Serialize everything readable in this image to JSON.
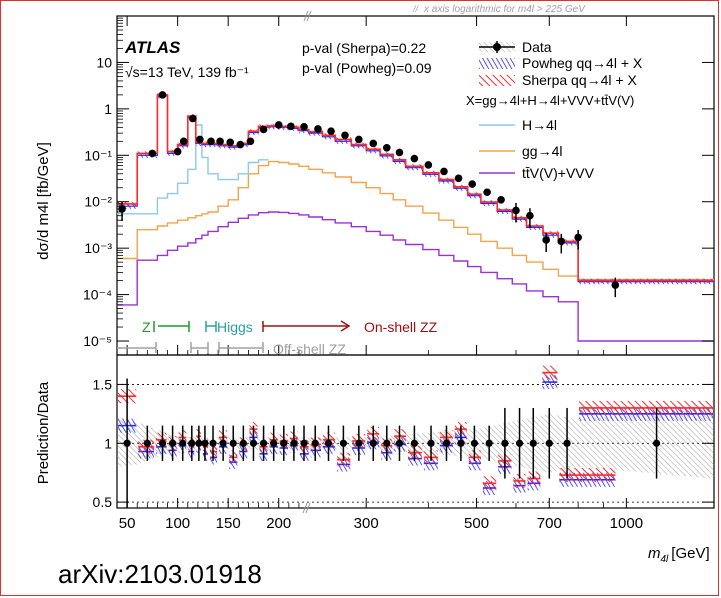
{
  "chart_data": [
    {
      "type": "line",
      "panel": "main",
      "experiment": "ATLAS",
      "energy_lumi_label": "√s=13 TeV, 139 fb⁻¹",
      "pval_sherpa": "p-val (Sherpa)=0.22",
      "pval_powheg": "p-val (Powheg)=0.09",
      "top_note": "x axis logarithmic for m4l > 225 GeV",
      "ylabel": "dσ/d m4l [fb/GeV]",
      "y_scale": "log",
      "ylim": [
        5e-06,
        100
      ],
      "y_ticks": [
        "10",
        "1",
        "10⁻¹",
        "10⁻²",
        "10⁻³",
        "10⁻⁴",
        "10⁻⁵"
      ],
      "legend": {
        "data": "Data",
        "powheg": "Powheg qq→4l + X",
        "sherpa": "Sherpa qq→4l + X",
        "x_def": "X=gg→4l+H→4l+VVV+tt̄V(V)",
        "higgs": "H→4l",
        "gg": "gg→4l",
        "ttv": "tt̄V(V)+VVV"
      },
      "region_labels": {
        "z": "Z",
        "higgs": "Higgs",
        "onshell_zz": "On-shell ZZ",
        "offshell_zz": "Off-shell ZZ"
      },
      "series": [
        {
          "name": "Data",
          "x": [
            45,
            75,
            85,
            100,
            106,
            115,
            122,
            133,
            142,
            152,
            162,
            172,
            185,
            200,
            212,
            225,
            240,
            255,
            272,
            290,
            310,
            330,
            350,
            375,
            400,
            430,
            460,
            490,
            525,
            560,
            600,
            640,
            690,
            740,
            800,
            950
          ],
          "y": [
            0.007,
            0.11,
            2.0,
            0.12,
            0.2,
            0.62,
            0.22,
            0.2,
            0.2,
            0.19,
            0.17,
            0.2,
            0.36,
            0.45,
            0.42,
            0.41,
            0.37,
            0.33,
            0.27,
            0.22,
            0.18,
            0.145,
            0.115,
            0.085,
            0.062,
            0.045,
            0.032,
            0.024,
            0.016,
            0.011,
            0.0065,
            0.005,
            0.0015,
            0.0014,
            0.0017,
            0.00016
          ]
        },
        {
          "name": "Sherpa qq→4l + X",
          "edges": [
            40,
            60,
            80,
            90,
            100,
            110,
            118,
            124,
            130,
            140,
            150,
            160,
            170,
            180,
            190,
            200,
            210,
            220,
            230,
            245,
            260,
            280,
            300,
            320,
            340,
            360,
            390,
            420,
            450,
            480,
            510,
            550,
            590,
            630,
            680,
            730,
            800,
            1500
          ],
          "y": [
            0.009,
            0.11,
            2.0,
            0.12,
            0.17,
            0.7,
            0.19,
            0.18,
            0.18,
            0.17,
            0.16,
            0.18,
            0.33,
            0.42,
            0.43,
            0.42,
            0.4,
            0.36,
            0.32,
            0.27,
            0.22,
            0.17,
            0.135,
            0.105,
            0.08,
            0.058,
            0.042,
            0.03,
            0.021,
            0.0145,
            0.0098,
            0.0066,
            0.0045,
            0.003,
            0.0021,
            0.0014,
            0.0002
          ]
        },
        {
          "name": "Powheg qq→4l + X",
          "edges": [
            40,
            60,
            80,
            90,
            100,
            110,
            118,
            124,
            130,
            140,
            150,
            160,
            170,
            180,
            190,
            200,
            210,
            220,
            230,
            245,
            260,
            280,
            300,
            320,
            340,
            360,
            390,
            420,
            450,
            480,
            510,
            550,
            590,
            630,
            680,
            730,
            800,
            1500
          ],
          "y": [
            0.008,
            0.1,
            1.9,
            0.11,
            0.16,
            0.65,
            0.18,
            0.17,
            0.17,
            0.16,
            0.15,
            0.17,
            0.31,
            0.4,
            0.41,
            0.4,
            0.38,
            0.34,
            0.3,
            0.25,
            0.2,
            0.16,
            0.125,
            0.097,
            0.074,
            0.054,
            0.039,
            0.028,
            0.0195,
            0.0135,
            0.0092,
            0.0062,
            0.0042,
            0.0028,
            0.0019,
            0.0013,
            0.00019
          ]
        },
        {
          "name": "H→4l",
          "edges": [
            40,
            60,
            80,
            90,
            100,
            110,
            118,
            124,
            130,
            140,
            150,
            160,
            170,
            180,
            190
          ],
          "y": [
            0.0055,
            0.0055,
            0.012,
            0.015,
            0.025,
            0.05,
            0.45,
            0.09,
            0.04,
            0.03,
            0.03,
            0.04,
            0.07,
            0.08
          ]
        },
        {
          "name": "gg→4l",
          "edges": [
            40,
            60,
            80,
            90,
            100,
            110,
            118,
            124,
            130,
            140,
            150,
            160,
            170,
            180,
            190,
            200,
            210,
            220,
            230,
            245,
            260,
            280,
            300,
            320,
            340,
            360,
            390,
            420,
            450,
            480,
            510,
            550,
            590,
            630,
            680,
            730,
            800,
            1500
          ],
          "y": [
            0.0006,
            0.0025,
            0.003,
            0.0035,
            0.004,
            0.0045,
            0.005,
            0.0055,
            0.006,
            0.008,
            0.011,
            0.02,
            0.04,
            0.06,
            0.073,
            0.07,
            0.065,
            0.058,
            0.05,
            0.042,
            0.034,
            0.026,
            0.02,
            0.015,
            0.011,
            0.008,
            0.0057,
            0.004,
            0.0028,
            0.002,
            0.0014,
            0.001,
            0.0007,
            0.0005,
            0.00035,
            0.00025,
            0.00021
          ]
        },
        {
          "name": "tt̄V(V)+VVV",
          "edges": [
            40,
            60,
            80,
            90,
            100,
            110,
            118,
            124,
            130,
            140,
            150,
            160,
            170,
            180,
            190,
            200,
            210,
            220,
            230,
            245,
            260,
            280,
            300,
            320,
            340,
            360,
            390,
            420,
            450,
            480,
            510,
            550,
            590,
            630,
            680,
            730,
            800,
            1500
          ],
          "y": [
            6e-05,
            0.00055,
            0.0007,
            0.0009,
            0.0011,
            0.0013,
            0.0016,
            0.0019,
            0.0023,
            0.0029,
            0.0036,
            0.0044,
            0.0052,
            0.0058,
            0.006,
            0.0059,
            0.0056,
            0.0052,
            0.0047,
            0.0041,
            0.0035,
            0.0029,
            0.0023,
            0.0019,
            0.0015,
            0.0012,
            0.00093,
            0.0007,
            0.00053,
            0.0004,
            0.0003,
            0.00022,
            0.00017,
            0.00012,
            9e-05,
            7e-05,
            1e-05
          ]
        }
      ]
    },
    {
      "type": "scatter",
      "panel": "ratio",
      "ylabel": "Prediction/Data",
      "xlabel": "m4l [GeV]",
      "ylim": [
        0.45,
        1.75
      ],
      "y_ticks": [
        "1.5",
        "1",
        "0.5"
      ],
      "x_ticks": [
        "50",
        "100",
        "150",
        "200",
        "300",
        "500",
        "700",
        "1000"
      ],
      "x_tick_values": [
        50,
        100,
        150,
        200,
        300,
        500,
        700,
        1000
      ],
      "x_scale": "linear below 225 GeV, logarithmic above",
      "series": [
        {
          "name": "Data",
          "x": [
            50,
            70,
            85,
            95,
            105,
            114,
            121,
            127,
            135,
            145,
            155,
            165,
            175,
            185,
            195,
            205,
            215,
            225,
            237,
            252,
            270,
            290,
            310,
            330,
            350,
            375,
            405,
            435,
            465,
            495,
            530,
            570,
            610,
            650,
            700,
            760,
            1150
          ],
          "y": [
            1.0,
            1.0,
            1.0,
            1.0,
            1.0,
            1.0,
            1.0,
            1.0,
            1.0,
            1.0,
            1.0,
            1.0,
            1.0,
            1.0,
            1.0,
            1.0,
            1.0,
            1.0,
            1.0,
            1.0,
            1.0,
            1.0,
            1.0,
            1.0,
            1.0,
            1.0,
            1.0,
            1.0,
            1.0,
            1.0,
            1.0,
            1.0,
            1.0,
            1.0,
            1.0,
            1.0,
            1.0
          ]
        },
        {
          "name": "Sherpa qq→4l + X",
          "x": [
            50,
            70,
            85,
            95,
            105,
            114,
            121,
            127,
            135,
            145,
            155,
            165,
            175,
            185,
            195,
            205,
            215,
            225,
            237,
            252,
            270,
            290,
            310,
            330,
            350,
            375,
            405,
            435,
            465,
            495,
            530,
            570,
            610,
            650,
            700,
            760,
            1150
          ],
          "y": [
            1.4,
            0.97,
            1.03,
            1.0,
            1.05,
            0.99,
            1.06,
            0.97,
            0.93,
            1.05,
            0.88,
            0.99,
            1.12,
            0.97,
            1.03,
            1.02,
            1.04,
            0.97,
            0.99,
            1.03,
            0.86,
            1.02,
            1.08,
            0.98,
            1.06,
            0.92,
            0.88,
            1.05,
            1.12,
            0.88,
            0.66,
            0.85,
            0.68,
            0.7,
            1.6,
            0.73,
            1.3
          ]
        },
        {
          "name": "Powheg qq→4l + X",
          "x": [
            50,
            70,
            85,
            95,
            105,
            114,
            121,
            127,
            135,
            145,
            155,
            165,
            175,
            185,
            195,
            205,
            215,
            225,
            237,
            252,
            270,
            290,
            310,
            330,
            350,
            375,
            405,
            435,
            465,
            495,
            530,
            570,
            610,
            650,
            700,
            760,
            1150
          ],
          "y": [
            1.15,
            0.93,
            0.97,
            0.94,
            0.98,
            0.93,
            0.98,
            0.91,
            0.88,
            0.97,
            0.84,
            0.93,
            1.05,
            0.91,
            0.97,
            0.96,
            0.98,
            0.91,
            0.94,
            0.97,
            0.82,
            0.96,
            1.01,
            0.92,
            0.99,
            0.87,
            0.83,
            0.98,
            1.05,
            0.83,
            0.62,
            0.8,
            0.64,
            0.66,
            1.52,
            0.69,
            1.25
          ]
        }
      ]
    }
  ],
  "citation": "arXiv:2103.01918",
  "xlabel_m": "m",
  "xlabel_sub": "4l",
  "xlabel_unit": "[GeV]",
  "colors": {
    "frame": "#e0302a",
    "sherpa": "#ff2a2a",
    "powheg": "#2a2aff",
    "higgs": "#8ec8ee",
    "gg": "#f5a24a",
    "ttv": "#9b30d6",
    "z_region": "#1a9a2a",
    "higgs_region": "#2aa0a0",
    "onshell": "#a01010",
    "offshell": "#a0a0a0"
  }
}
